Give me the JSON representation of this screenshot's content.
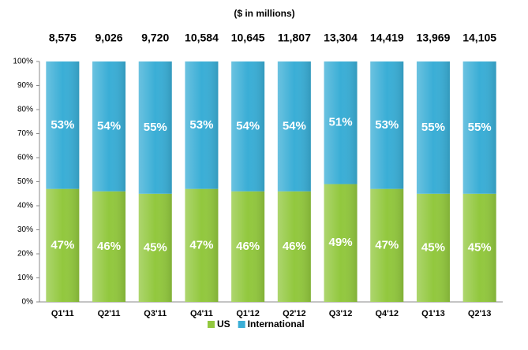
{
  "chart_data": {
    "type": "stacked_bar_100",
    "title": "($ in millions)",
    "categories": [
      "Q1'11",
      "Q2'11",
      "Q3'11",
      "Q4'11",
      "Q1'12",
      "Q2'12",
      "Q3'12",
      "Q4'12",
      "Q1'13",
      "Q2'13"
    ],
    "total_labels": [
      "8,575",
      "9,026",
      "9,720",
      "10,584",
      "10,645",
      "11,807",
      "13,304",
      "14,419",
      "13,969",
      "14,105"
    ],
    "series": [
      {
        "name": "US",
        "color": "#92c83e",
        "values": [
          47,
          46,
          45,
          47,
          46,
          46,
          49,
          47,
          45,
          45
        ],
        "value_labels": [
          "47%",
          "46%",
          "45%",
          "47%",
          "46%",
          "46%",
          "49%",
          "47%",
          "45%",
          "45%"
        ]
      },
      {
        "name": "International",
        "color": "#3aaed6",
        "values": [
          53,
          54,
          55,
          53,
          54,
          54,
          51,
          53,
          55,
          55
        ],
        "value_labels": [
          "53%",
          "54%",
          "55%",
          "53%",
          "54%",
          "54%",
          "51%",
          "53%",
          "55%",
          "55%"
        ]
      }
    ],
    "ylim": [
      0,
      100
    ],
    "yticks": [
      {
        "value": 0,
        "label": "0%"
      },
      {
        "value": 10,
        "label": "10%"
      },
      {
        "value": 20,
        "label": "20%"
      },
      {
        "value": 30,
        "label": "30%"
      },
      {
        "value": 40,
        "label": "40%"
      },
      {
        "value": 50,
        "label": "50%"
      },
      {
        "value": 60,
        "label": "60%"
      },
      {
        "value": 70,
        "label": "70%"
      },
      {
        "value": 80,
        "label": "80%"
      },
      {
        "value": 90,
        "label": "90%"
      },
      {
        "value": 100,
        "label": "100%"
      }
    ],
    "legend": "bottom"
  }
}
